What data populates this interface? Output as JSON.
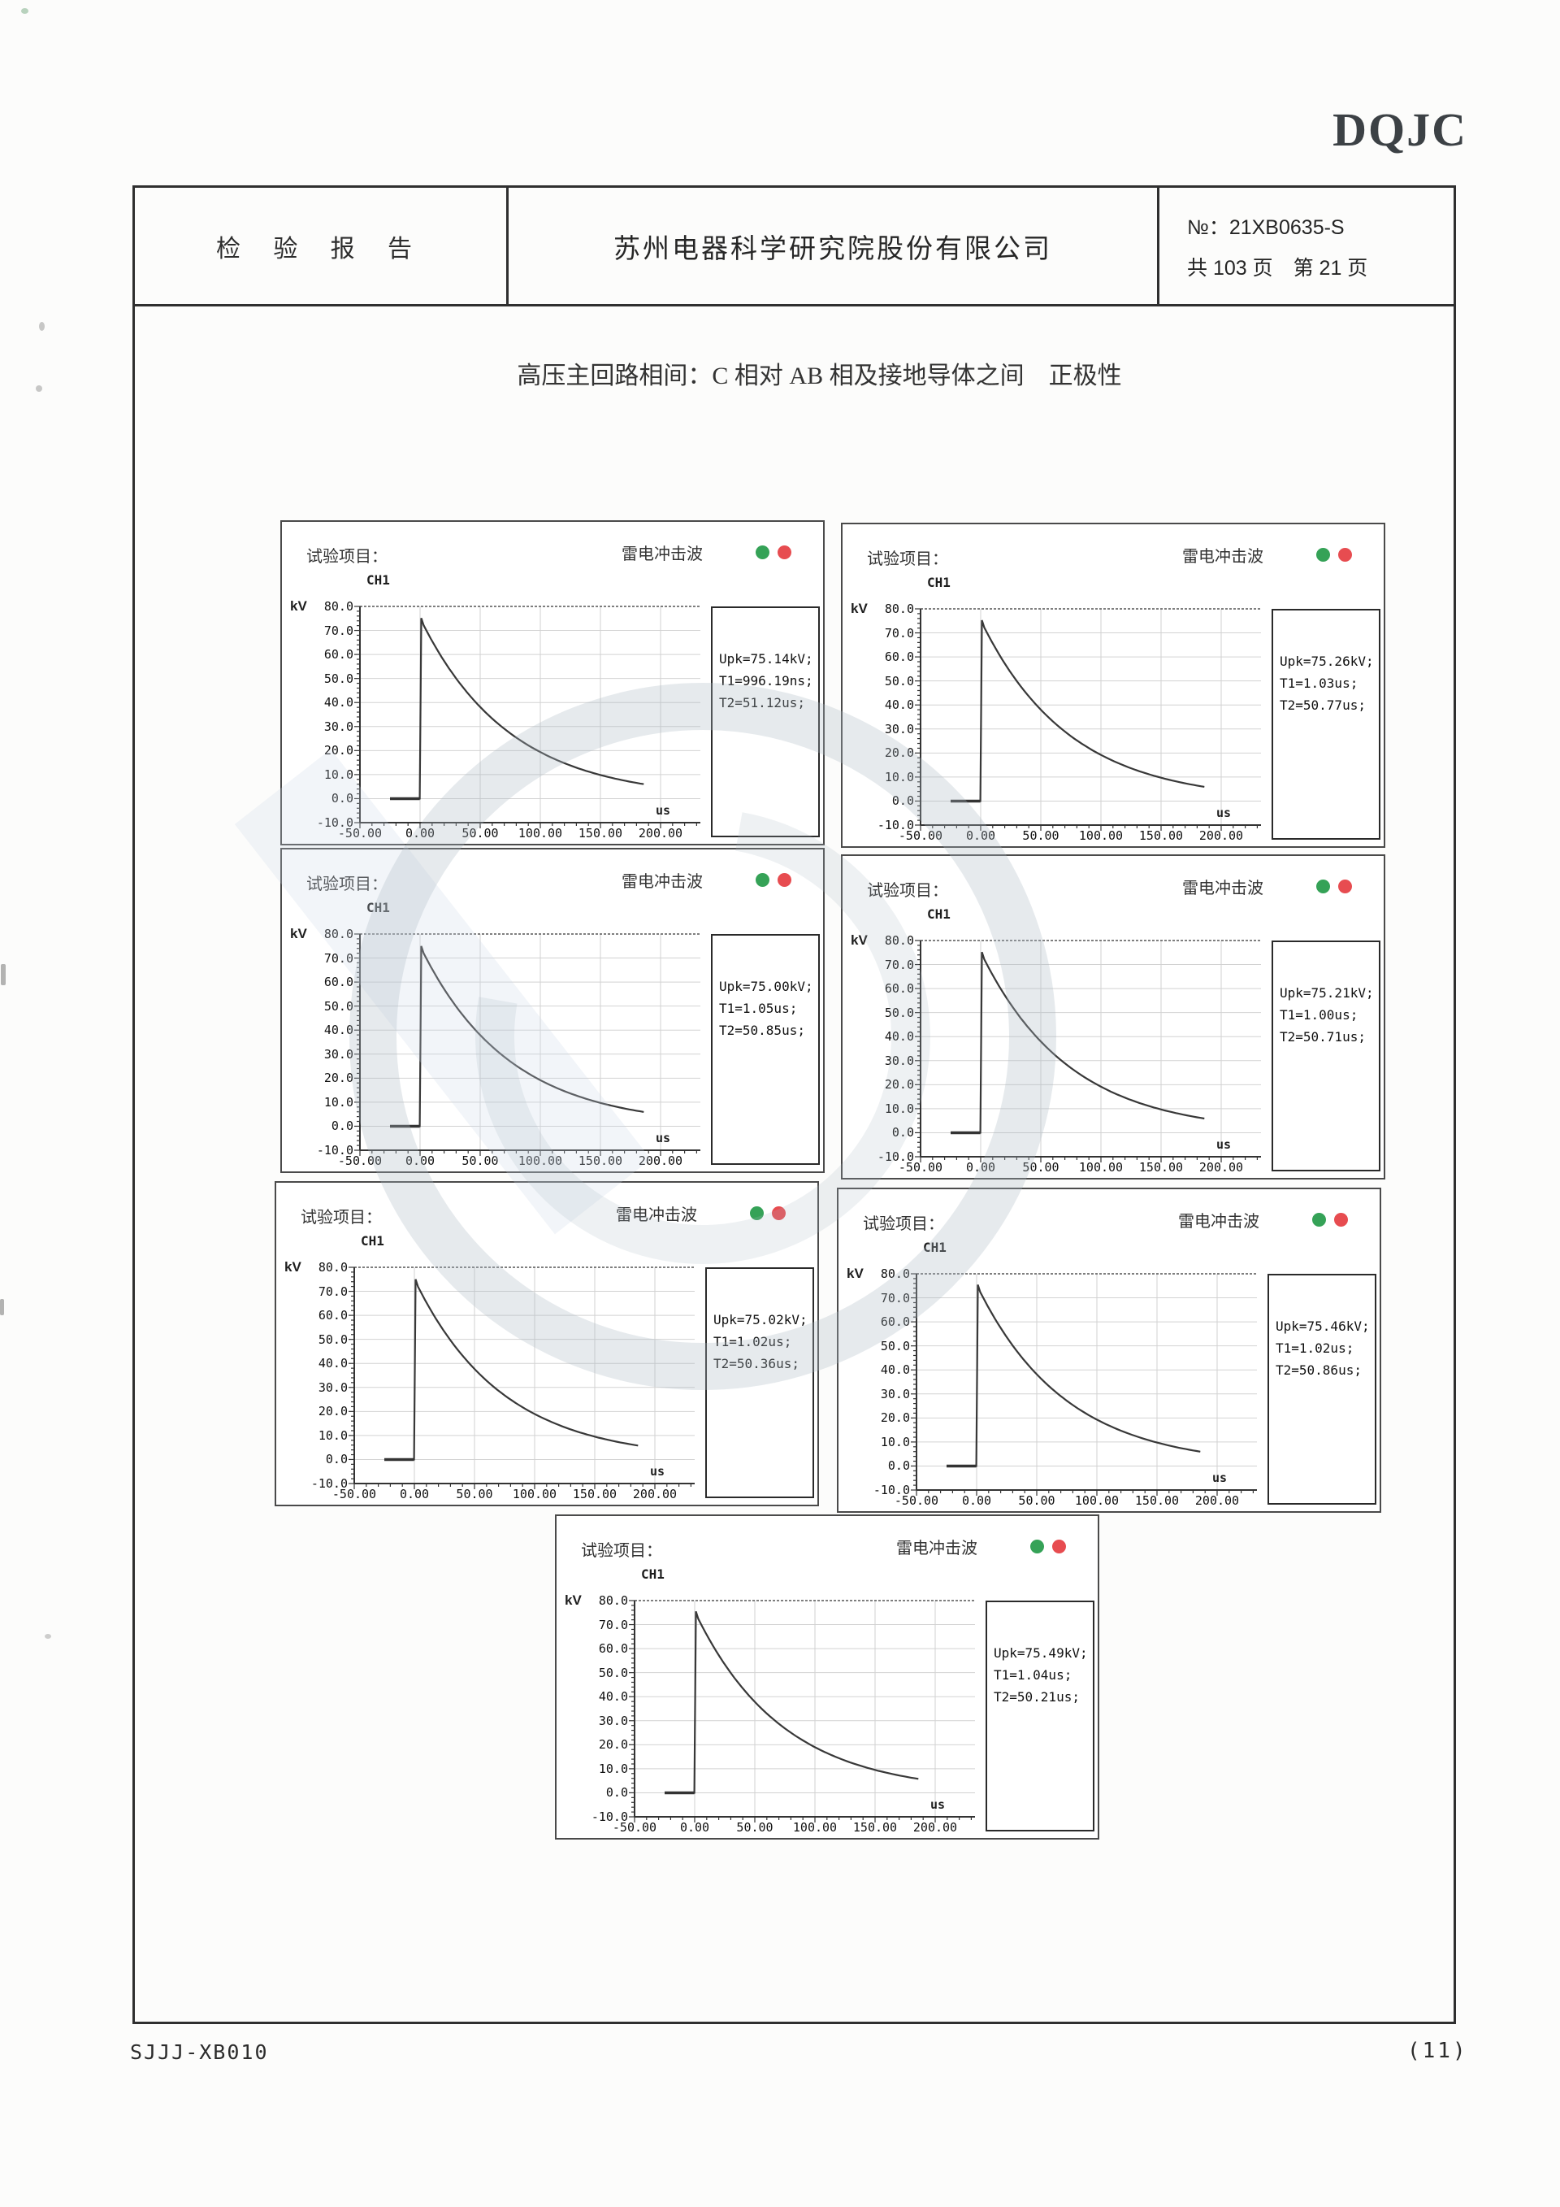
{
  "page": {
    "logo": "DQJC",
    "footer_left": "SJJJ-XB010",
    "footer_right": "(11)"
  },
  "header": {
    "report_title": "检 验 报 告",
    "company": "苏州电器科学研究院股份有限公司",
    "report_no_label": "№：",
    "report_no": "21XB0635-S",
    "pages_line": "共 103 页　第 21 页"
  },
  "section_title": "高压主回路相间：C 相对 AB 相及接地导体之间　正极性",
  "panel_common": {
    "test_item_label": "试验项目：",
    "wave_title": "雷电冲击波",
    "channel": "CH1",
    "y_unit": "kV",
    "x_unit": "us",
    "status_colors": {
      "green": "#35a257",
      "red": "#e74c50"
    }
  },
  "chart_data": [
    {
      "type": "line",
      "title": "雷电冲击波",
      "channel": "CH1",
      "xlabel": "us",
      "ylabel": "kV",
      "xlim": [
        -50,
        233
      ],
      "ylim": [
        -10,
        80
      ],
      "x_ticks": [
        -50,
        0,
        50,
        100,
        150,
        200
      ],
      "y_ticks": [
        80,
        70,
        60,
        50,
        40,
        30,
        20,
        10,
        0,
        -10
      ],
      "readings": [
        "Upk=75.14kV;",
        "T1=996.19ns;",
        "T2=51.12us;"
      ],
      "peak_kV": 75.14,
      "front_time": "996.19ns",
      "half_time_us": 51.12,
      "key_points_us_kV": [
        [
          -25,
          0
        ],
        [
          0,
          0
        ],
        [
          1,
          75.1
        ],
        [
          50,
          38.1
        ],
        [
          100,
          19.4
        ],
        [
          150,
          9.8
        ],
        [
          185,
          6.1
        ]
      ]
    },
    {
      "type": "line",
      "title": "雷电冲击波",
      "channel": "CH1",
      "xlabel": "us",
      "ylabel": "kV",
      "xlim": [
        -50,
        233
      ],
      "ylim": [
        -10,
        80
      ],
      "x_ticks": [
        -50,
        0,
        50,
        100,
        150,
        200
      ],
      "y_ticks": [
        80,
        70,
        60,
        50,
        40,
        30,
        20,
        10,
        0,
        -10
      ],
      "readings": [
        "Upk=75.26kV;",
        "T1=1.03us;",
        "T2=50.77us;"
      ],
      "peak_kV": 75.26,
      "front_time": "1.03us",
      "half_time_us": 50.77,
      "key_points_us_kV": [
        [
          -25,
          0
        ],
        [
          0,
          0
        ],
        [
          1,
          75.3
        ],
        [
          50,
          38.0
        ],
        [
          100,
          19.2
        ],
        [
          150,
          9.7
        ],
        [
          185,
          6.0
        ]
      ]
    },
    {
      "type": "line",
      "title": "雷电冲击波",
      "channel": "CH1",
      "xlabel": "us",
      "ylabel": "kV",
      "xlim": [
        -50,
        233
      ],
      "ylim": [
        -10,
        80
      ],
      "x_ticks": [
        -50,
        0,
        50,
        100,
        150,
        200
      ],
      "y_ticks": [
        80,
        70,
        60,
        50,
        40,
        30,
        20,
        10,
        0,
        -10
      ],
      "readings": [
        "Upk=75.00kV;",
        "T1=1.05us;",
        "T2=50.85us;"
      ],
      "peak_kV": 75.0,
      "front_time": "1.05us",
      "half_time_us": 50.85,
      "key_points_us_kV": [
        [
          -25,
          0
        ],
        [
          0,
          0
        ],
        [
          1,
          75.0
        ],
        [
          50,
          38.0
        ],
        [
          100,
          19.2
        ],
        [
          150,
          9.7
        ],
        [
          185,
          6.0
        ]
      ]
    },
    {
      "type": "line",
      "title": "雷电冲击波",
      "channel": "CH1",
      "xlabel": "us",
      "ylabel": "kV",
      "xlim": [
        -50,
        233
      ],
      "ylim": [
        -10,
        80
      ],
      "x_ticks": [
        -50,
        0,
        50,
        100,
        150,
        200
      ],
      "y_ticks": [
        80,
        70,
        60,
        50,
        40,
        30,
        20,
        10,
        0,
        -10
      ],
      "readings": [
        "Upk=75.21kV;",
        "T1=1.00us;",
        "T2=50.71us;"
      ],
      "peak_kV": 75.21,
      "front_time": "1.00us",
      "half_time_us": 50.71,
      "key_points_us_kV": [
        [
          -25,
          0
        ],
        [
          0,
          0
        ],
        [
          1,
          75.2
        ],
        [
          50,
          38.0
        ],
        [
          100,
          19.2
        ],
        [
          150,
          9.7
        ],
        [
          185,
          6.0
        ]
      ]
    },
    {
      "type": "line",
      "title": "雷电冲击波",
      "channel": "CH1",
      "xlabel": "us",
      "ylabel": "kV",
      "xlim": [
        -50,
        233
      ],
      "ylim": [
        -10,
        80
      ],
      "x_ticks": [
        -50,
        0,
        50,
        100,
        150,
        200
      ],
      "y_ticks": [
        80,
        70,
        60,
        50,
        40,
        30,
        20,
        10,
        0,
        -10
      ],
      "readings": [
        "Upk=75.02kV;",
        "T1=1.02us;",
        "T2=50.36us;"
      ],
      "peak_kV": 75.02,
      "front_time": "1.02us",
      "half_time_us": 50.36,
      "key_points_us_kV": [
        [
          -25,
          0
        ],
        [
          0,
          0
        ],
        [
          1,
          75.0
        ],
        [
          50,
          37.7
        ],
        [
          100,
          19.0
        ],
        [
          150,
          9.5
        ],
        [
          185,
          5.9
        ]
      ]
    },
    {
      "type": "line",
      "title": "雷电冲击波",
      "channel": "CH1",
      "xlabel": "us",
      "ylabel": "kV",
      "xlim": [
        -50,
        233
      ],
      "ylim": [
        -10,
        80
      ],
      "x_ticks": [
        -50,
        0,
        50,
        100,
        150,
        200
      ],
      "y_ticks": [
        80,
        70,
        60,
        50,
        40,
        30,
        20,
        10,
        0,
        -10
      ],
      "readings": [
        "Upk=75.46kV;",
        "T1=1.02us;",
        "T2=50.86us;"
      ],
      "peak_kV": 75.46,
      "front_time": "1.02us",
      "half_time_us": 50.86,
      "key_points_us_kV": [
        [
          -25,
          0
        ],
        [
          0,
          0
        ],
        [
          1,
          75.5
        ],
        [
          50,
          38.2
        ],
        [
          100,
          19.3
        ],
        [
          150,
          9.8
        ],
        [
          185,
          6.1
        ]
      ]
    },
    {
      "type": "line",
      "title": "雷电冲击波",
      "channel": "CH1",
      "xlabel": "us",
      "ylabel": "kV",
      "xlim": [
        -50,
        233
      ],
      "ylim": [
        -10,
        80
      ],
      "x_ticks": [
        -50,
        0,
        50,
        100,
        150,
        200
      ],
      "y_ticks": [
        80,
        70,
        60,
        50,
        40,
        30,
        20,
        10,
        0,
        -10
      ],
      "readings": [
        "Upk=75.49kV;",
        "T1=1.04us;",
        "T2=50.21us;"
      ],
      "peak_kV": 75.49,
      "front_time": "1.04us",
      "half_time_us": 50.21,
      "key_points_us_kV": [
        [
          -25,
          0
        ],
        [
          0,
          0
        ],
        [
          1,
          75.5
        ],
        [
          50,
          37.9
        ],
        [
          100,
          19.0
        ],
        [
          150,
          9.6
        ],
        [
          185,
          5.9
        ]
      ]
    }
  ]
}
